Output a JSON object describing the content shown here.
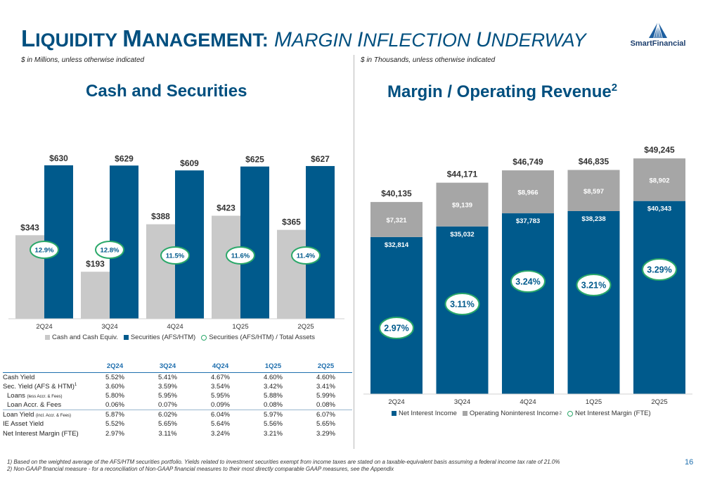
{
  "header": {
    "title_part1_big": "L",
    "title_part1_rest": "IQUIDITY ",
    "title_part2_big": "M",
    "title_part2_rest": "ANAGEMENT:",
    "title_part3_big": " M",
    "title_part3_rest": "ARGIN ",
    "title_part4_big": "I",
    "title_part4_rest": "NFLECTION ",
    "title_part5_big": "U",
    "title_part5_rest": "NDERWAY",
    "logo_text": "SmartFinancial"
  },
  "left": {
    "units_note": "$ in Millions, unless otherwise indicated",
    "section_title": "Cash and Securities"
  },
  "right": {
    "units_note": "$ in Thousands, unless otherwise indicated",
    "section_title": "Margin / Operating Revenue",
    "section_title_sup": "2"
  },
  "colors": {
    "navy": "#005a8c",
    "gray": "#a6a6a6",
    "light_gray": "#c9c9c9",
    "green": "#2ba86a",
    "title_blue": "#004f7f"
  },
  "chart_data": [
    {
      "type": "bar",
      "categories": [
        "2Q24",
        "3Q24",
        "4Q24",
        "1Q25",
        "2Q25"
      ],
      "series": [
        {
          "name": "Cash and Cash Equiv.",
          "values": [
            343,
            193,
            388,
            423,
            365
          ],
          "labels": [
            "$343",
            "$193",
            "$388",
            "$423",
            "$365"
          ]
        },
        {
          "name": "Securities (AFS/HTM)",
          "values": [
            630,
            629,
            609,
            625,
            627
          ],
          "labels": [
            "$630",
            "$629",
            "$609",
            "$625",
            "$627"
          ]
        }
      ],
      "ratio": {
        "name": "Securities (AFS/HTM) / Total Assets",
        "labels": [
          "12.9%",
          "12.8%",
          "11.5%",
          "11.6%",
          "11.4%"
        ]
      },
      "ylim": [
        0,
        650
      ],
      "legend": [
        "Cash and Cash Equiv.",
        "Securities (AFS/HTM)",
        "Securities (AFS/HTM) / Total Assets"
      ]
    },
    {
      "type": "bar",
      "stacked": true,
      "categories": [
        "2Q24",
        "3Q24",
        "4Q24",
        "1Q25",
        "2Q25"
      ],
      "series": [
        {
          "name": "Net Interest Income",
          "values": [
            32814,
            35032,
            37783,
            38238,
            40343
          ],
          "labels": [
            "$32,814",
            "$35,032",
            "$37,783",
            "$38,238",
            "$40,343"
          ]
        },
        {
          "name": "Operating Noninterest Income",
          "values": [
            7321,
            9139,
            8966,
            8597,
            8902
          ],
          "labels": [
            "$7,321",
            "$9,139",
            "$8,966",
            "$8,597",
            "$8,902"
          ]
        }
      ],
      "totals": [
        "$40,135",
        "$44,171",
        "$46,749",
        "$46,835",
        "$49,245"
      ],
      "total_values": [
        40135,
        44171,
        46749,
        46835,
        49245
      ],
      "margin": {
        "name": "Net Interest Margin (FTE)",
        "labels": [
          "2.97%",
          "3.11%",
          "3.24%",
          "3.21%",
          "3.29%"
        ],
        "values": [
          2.97,
          3.11,
          3.24,
          3.21,
          3.29
        ]
      },
      "ylim": [
        0,
        50000
      ],
      "legend": [
        "Net Interest Income",
        "Operating Noninterest Income",
        "Net Interest Margin (FTE)"
      ],
      "legend_sup": "2"
    }
  ],
  "yield_table": {
    "columns": [
      "2Q24",
      "3Q24",
      "4Q24",
      "1Q25",
      "2Q25"
    ],
    "rows": [
      {
        "label": "Cash Yield",
        "values": [
          "5.52%",
          "5.41%",
          "4.67%",
          "4.60%",
          "4.60%"
        ]
      },
      {
        "label": "Sec. Yield (AFS & HTM)",
        "sup": "1",
        "values": [
          "3.60%",
          "3.59%",
          "3.54%",
          "3.42%",
          "3.41%"
        ]
      },
      {
        "label": "Loans",
        "small": "(less Accr. & Fees)",
        "values": [
          "5.80%",
          "5.95%",
          "5.95%",
          "5.88%",
          "5.99%"
        ]
      },
      {
        "label": "Loan Accr. & Fees",
        "values": [
          "0.06%",
          "0.07%",
          "0.09%",
          "0.08%",
          "0.08%"
        ]
      },
      {
        "label": "Loan Yield",
        "small": "(incl. Accr. & Fees)",
        "values": [
          "5.87%",
          "6.02%",
          "6.04%",
          "5.97%",
          "6.07%"
        ]
      },
      {
        "label": "IE Asset Yield",
        "values": [
          "5.52%",
          "5.65%",
          "5.64%",
          "5.56%",
          "5.65%"
        ]
      },
      {
        "label": "Net Interest Margin (FTE)",
        "values": [
          "2.97%",
          "3.11%",
          "3.24%",
          "3.21%",
          "3.29%"
        ]
      }
    ]
  },
  "footnotes": [
    "1)  Based on the weighted average of the AFS/HTM securities portfolio. Yields related to investment securities exempt from income taxes are stated on a taxable-equivalent basis assuming a federal income tax rate of 21.0%",
    "2)  Non-GAAP financial measure - for a reconciliation of Non-GAAP financial measures to their most directly comparable GAAP measures, see the Appendix"
  ],
  "page_number": "16"
}
